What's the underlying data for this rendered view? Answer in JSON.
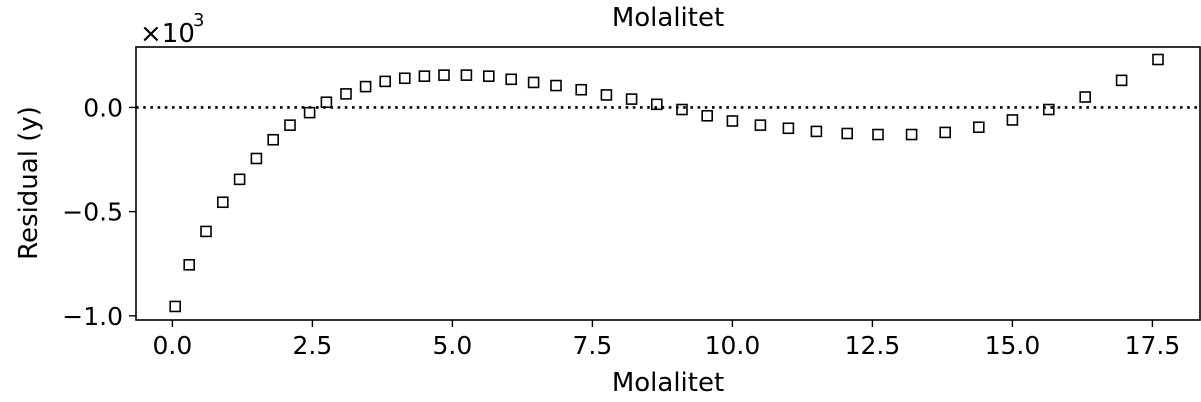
{
  "chart_data": {
    "type": "scatter",
    "title": "Molalitet",
    "xlabel": "Molalitet",
    "ylabel": "Residual (y)",
    "y_multiplier": "×10",
    "y_multiplier_exp": "3",
    "xlim": [
      -0.65,
      18.35
    ],
    "ylim": [
      -1.02,
      0.29
    ],
    "x_ticks": [
      0.0,
      2.5,
      5.0,
      7.5,
      10.0,
      12.5,
      15.0,
      17.5
    ],
    "x_tick_labels": [
      "0.0",
      "2.5",
      "5.0",
      "7.5",
      "10.0",
      "12.5",
      "15.0",
      "17.5"
    ],
    "y_ticks": [
      -1.0,
      -0.5,
      0.0
    ],
    "y_tick_labels": [
      "−1.0",
      "−0.5",
      "0.0"
    ],
    "reference_line_y": 0.0,
    "grid": false,
    "marker": "open-square",
    "series": [
      {
        "x": [
          0.05,
          0.3,
          0.6,
          0.9,
          1.2,
          1.5,
          1.8,
          2.1,
          2.45,
          2.75,
          3.1,
          3.45,
          3.8,
          4.15,
          4.5,
          4.85,
          5.25,
          5.65,
          6.05,
          6.45,
          6.85,
          7.3,
          7.75,
          8.2,
          8.65,
          9.1,
          9.55,
          10.0,
          10.5,
          11.0,
          11.5,
          12.05,
          12.6,
          13.2,
          13.8,
          14.4,
          15.0,
          15.65,
          16.3,
          16.95,
          17.6
        ],
        "y": [
          -0.955,
          -0.755,
          -0.595,
          -0.455,
          -0.345,
          -0.245,
          -0.155,
          -0.085,
          -0.025,
          0.025,
          0.065,
          0.1,
          0.125,
          0.14,
          0.15,
          0.155,
          0.155,
          0.15,
          0.135,
          0.12,
          0.105,
          0.085,
          0.06,
          0.04,
          0.015,
          -0.01,
          -0.04,
          -0.065,
          -0.085,
          -0.1,
          -0.115,
          -0.125,
          -0.13,
          -0.13,
          -0.12,
          -0.095,
          -0.06,
          -0.01,
          0.05,
          0.13,
          0.23
        ]
      }
    ]
  }
}
